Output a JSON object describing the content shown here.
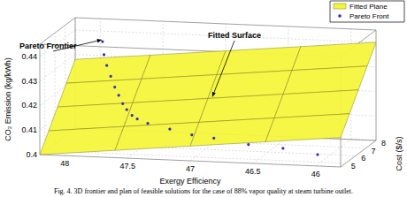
{
  "chart_data": {
    "type": "scatter3d",
    "title": "Fig. 4. 3D frontier and plan of feasible solutions for the case of 88% vapor quality at steam turbine outlet.",
    "xlabel": "Exergy Efficiency",
    "ylabel": "Cost ($/s)",
    "zlabel": "CO₂ Emission (kg/kWh)",
    "xlim": [
      48.2,
      45.8
    ],
    "xticks": [
      48,
      47.5,
      47,
      46.5,
      46
    ],
    "ylim": [
      4.5,
      8
    ],
    "yticks": [
      5,
      6,
      7,
      8
    ],
    "zlim": [
      0.4,
      0.445
    ],
    "zticks": [
      0.4,
      0.41,
      0.42,
      0.43,
      0.44
    ],
    "grid": true,
    "legend": "top-right",
    "annotations": [
      {
        "text": "Pareto Frontier"
      },
      {
        "text": "Fitted Surface"
      }
    ],
    "series": [
      {
        "name": "Fitted Plane",
        "type": "surface",
        "color": "#f5f53c",
        "x": [
          48.2,
          47.6,
          47.0,
          46.4,
          45.8
        ],
        "y": [
          4.5,
          5.375,
          6.25,
          7.125,
          8
        ],
        "z": [
          [
            0.4,
            0.403,
            0.406,
            0.409,
            0.412
          ],
          [
            0.407,
            0.41,
            0.413,
            0.416,
            0.419
          ],
          [
            0.414,
            0.417,
            0.42,
            0.423,
            0.426
          ],
          [
            0.421,
            0.424,
            0.427,
            0.43,
            0.433
          ],
          [
            0.428,
            0.431,
            0.434,
            0.437,
            0.44
          ]
        ]
      },
      {
        "name": "Pareto Front",
        "type": "scatter",
        "marker": "circle",
        "color": "#3030c0",
        "x": [
          47.95,
          47.93,
          47.9,
          47.86,
          47.82,
          47.78,
          47.74,
          47.7,
          47.65,
          47.6,
          47.5,
          47.3,
          47.1,
          46.9,
          46.6,
          46.3,
          46.0
        ],
        "y": [
          7.6,
          7.5,
          7.4,
          7.3,
          7.2,
          7.1,
          7.0,
          6.9,
          6.8,
          6.7,
          6.5,
          6.2,
          5.9,
          5.6,
          5.3,
          5.0,
          4.7
        ],
        "z": [
          0.437,
          0.432,
          0.428,
          0.424,
          0.42,
          0.417,
          0.414,
          0.412,
          0.41,
          0.409,
          0.408,
          0.407,
          0.406,
          0.406,
          0.405,
          0.405,
          0.404
        ]
      }
    ]
  }
}
